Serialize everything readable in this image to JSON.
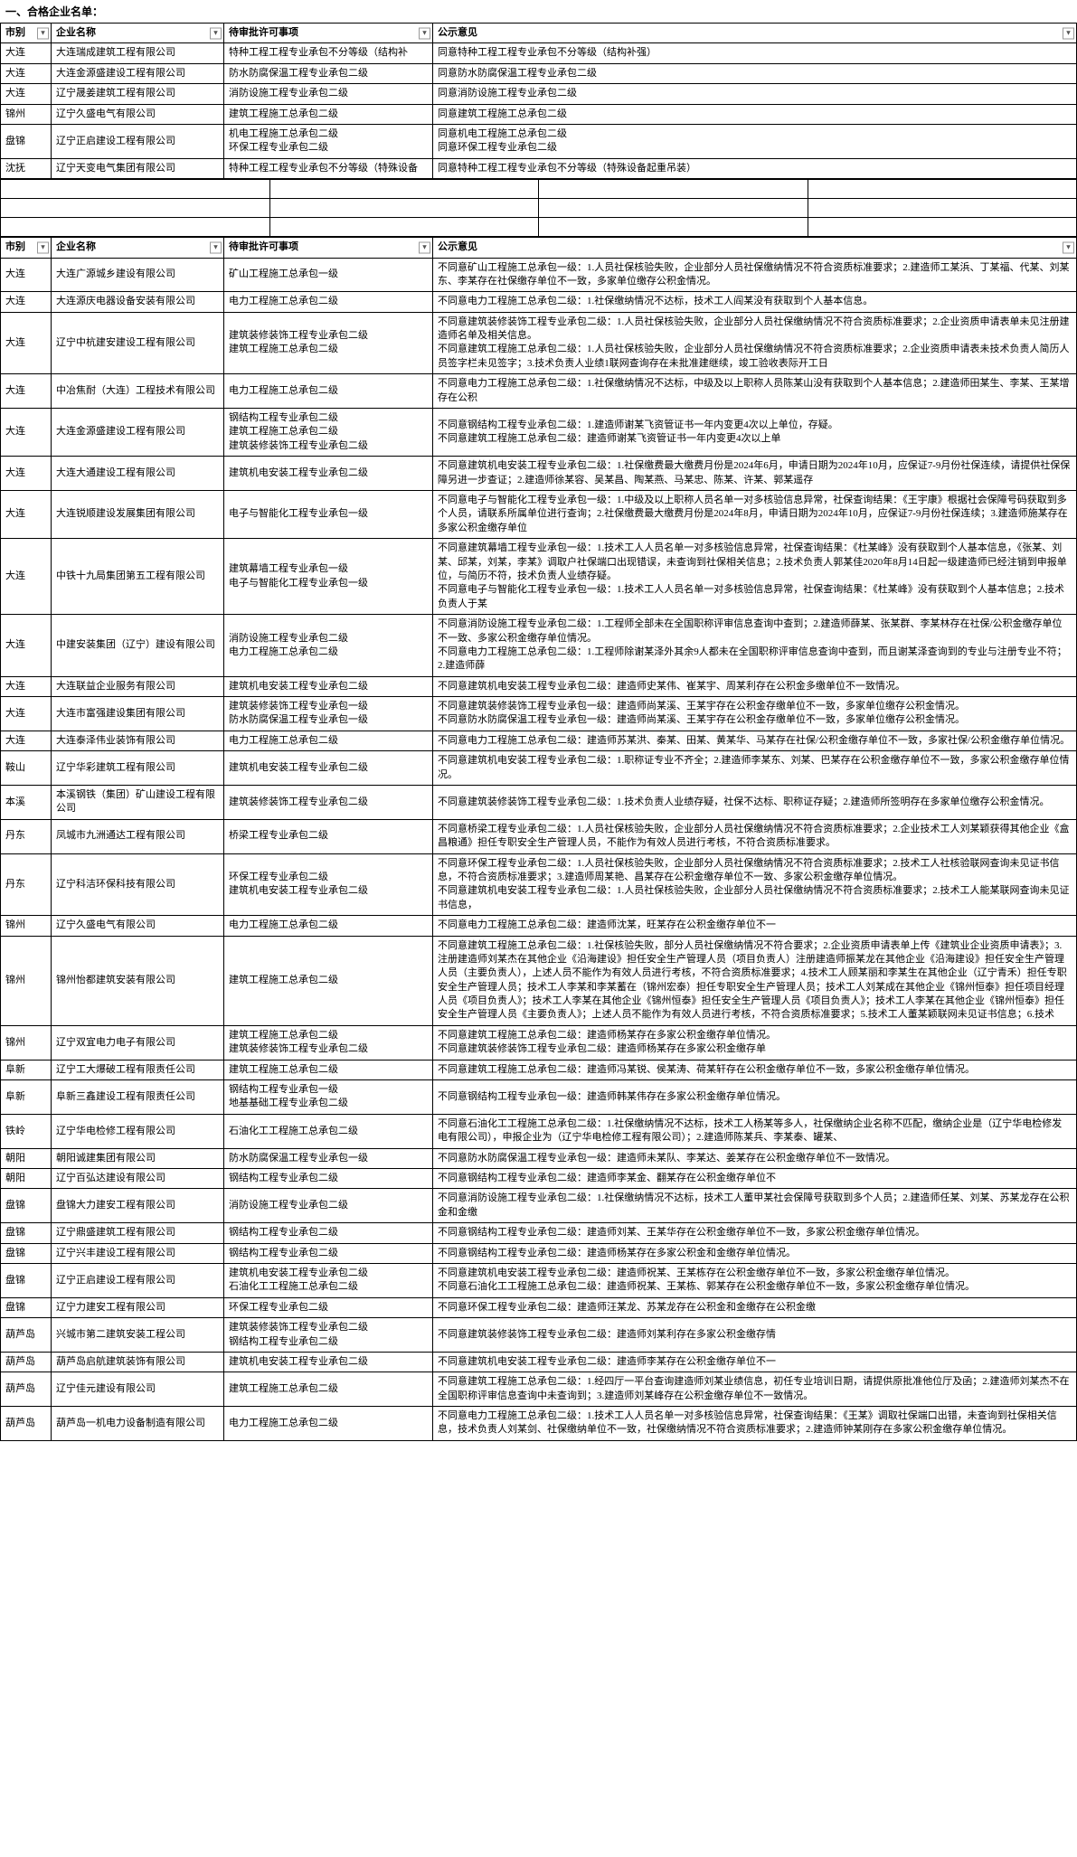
{
  "section1_title": "一、合格企业名单：",
  "headers": {
    "city": "市别",
    "company": "企业名称",
    "item": "待审批许可事项",
    "opinion": "公示意见"
  },
  "table1_rows": [
    {
      "city": "大连",
      "company": "大连瑞成建筑工程有限公司",
      "item": "特种工程工程专业承包不分等级（结构补",
      "opinion": "同意特种工程工程专业承包不分等级（结构补强）"
    },
    {
      "city": "大连",
      "company": "大连金源盛建设工程有限公司",
      "item": "防水防腐保温工程专业承包二级",
      "opinion": "同意防水防腐保温工程专业承包二级"
    },
    {
      "city": "大连",
      "company": "辽宁晟姜建筑工程有限公司",
      "item": "消防设施工程专业承包二级",
      "opinion": "同意消防设施工程专业承包二级"
    },
    {
      "city": "锦州",
      "company": "辽宁久盛电气有限公司",
      "item": "建筑工程施工总承包二级",
      "opinion": "同意建筑工程施工总承包二级"
    },
    {
      "city": "盘锦",
      "company": "辽宁正启建设工程有限公司",
      "item": "机电工程施工总承包二级\n环保工程专业承包二级",
      "opinion": "同意机电工程施工总承包二级\n同意环保工程专业承包二级"
    },
    {
      "city": "沈抚",
      "company": "辽宁天变电气集团有限公司",
      "item": "特种工程工程专业承包不分等级（特殊设备",
      "opinion": "同意特种工程工程专业承包不分等级（特殊设备起重吊装）"
    }
  ],
  "table2_rows": [
    {
      "city": "大连",
      "company": "大连广源城乡建设有限公司",
      "item": "矿山工程施工总承包一级",
      "opinion": "不同意矿山工程施工总承包一级：1.人员社保核验失败，企业部分人员社保缴纳情况不符合资质标准要求；2.建造师工某浜、丁某福、代某、刘某东、李某存在社保缴存单位不一致，多家单位缴存公积金情况。"
    },
    {
      "city": "大连",
      "company": "大连源庆电器设备安装有限公司",
      "item": "电力工程施工总承包二级",
      "opinion": "不同意电力工程施工总承包二级：1.社保缴纳情况不达标，技术工人阎某没有获取到个人基本信息。"
    },
    {
      "city": "大连",
      "company": "辽宁中杭建安建设工程有限公司",
      "item": "建筑装修装饰工程专业承包二级\n建筑工程施工总承包二级",
      "opinion": "不同意建筑装修装饰工程专业承包二级：1.人员社保核验失败，企业部分人员社保缴纳情况不符合资质标准要求；2.企业资质申请表单未见注册建造师名单及相关信息。\n不同意建筑工程施工总承包二级：1.人员社保核验失败，企业部分人员社保缴纳情况不符合资质标准要求；2.企业资质申请表未技术负责人简历人员签字栏未见签字；3.技术负责人业绩1联网查询存在未批准建继续，竣工验收表际开工日"
    },
    {
      "city": "大连",
      "company": "中冶焦耐（大连）工程技术有限公司",
      "item": "电力工程施工总承包二级",
      "opinion": "不同意电力工程施工总承包二级：1.社保缴纳情况不达标，中级及以上职称人员陈某山没有获取到个人基本信息；2.建造师田某生、李某、王某增存在公积"
    },
    {
      "city": "大连",
      "company": "大连金源盛建设工程有限公司",
      "item": "钢结构工程专业承包二级\n建筑工程施工总承包二级\n建筑装修装饰工程专业承包二级",
      "opinion": "不同意钢结构工程专业承包二级：1.建造师谢某飞资管证书一年内变更4次以上单位，存疑。\n不同意建筑工程施工总承包二级：建造师谢某飞资管证书一年内变更4次以上单"
    },
    {
      "city": "大连",
      "company": "大连大通建设工程有限公司",
      "item": "建筑机电安装工程专业承包二级",
      "opinion": "不同意建筑机电安装工程专业承包二级：1.社保缴费最大缴费月份是2024年6月，申请日期为2024年10月，应保证7-9月份社保连续，请提供社保保障另进一步查证；2.建造师徐某容、吴某昌、陶某燕、马某忠、陈某、许某、郭某遥存"
    },
    {
      "city": "大连",
      "company": "大连锐顺建设发展集团有限公司",
      "item": "电子与智能化工程专业承包一级",
      "opinion": "不同意电子与智能化工程专业承包一级：1.中级及以上职称人员名单一对多核验信息异常，社保查询结果：《王宇康》根据社会保障号码获取到多个人员，请联系所属单位进行查询；2.社保缴费最大缴费月份是2024年8月，申请日期为2024年10月，应保证7-9月份社保连续；3.建造师施某存在多家公积金缴存单位"
    },
    {
      "city": "大连",
      "company": "中铁十九局集团第五工程有限公司",
      "item": "建筑幕墙工程专业承包一级\n电子与智能化工程专业承包一级",
      "opinion": "不同意建筑幕墙工程专业承包一级：1.技术工人人员名单一对多核验信息异常，社保查询结果：《杜某峰》没有获取到个人基本信息，《张某、刘某、邱某，刘某，李某》调取户社保端口出现错误，未查询到社保相关信息；2.技术负责人郭某佳2020年8月14日起一级建造师已经注销到申报单位，与简历不符，技术负责人业绩存疑。\n不同意电子与智能化工程专业承包一级：1.技术工人人员名单一对多核验信息异常，社保查询结果：《杜某峰》没有获取到个人基本信息；2.技术负责人于某"
    },
    {
      "city": "大连",
      "company": "中建安装集团（辽宁）建设有限公司",
      "item": "消防设施工程专业承包二级\n电力工程施工总承包二级",
      "opinion": "不同意消防设施工程专业承包二级：1.工程师全部未在全国职称评审信息查询中查到；2.建造师薛某、张某群、李某林存在社保/公积金缴存单位不一致、多家公积金缴存单位情况。\n不同意电力工程施工总承包二级：1.工程师除谢某泽外其余9人都未在全国职称评审信息查询中查到，而且谢某泽查询到的专业与注册专业不符；2.建造师薛"
    },
    {
      "city": "大连",
      "company": "大连联益企业服务有限公司",
      "item": "建筑机电安装工程专业承包二级",
      "opinion": "不同意建筑机电安装工程专业承包二级：建造师史某伟、崔某宇、周某利存在公积金多缴单位不一致情况。"
    },
    {
      "city": "大连",
      "company": "大连市富强建设集团有限公司",
      "item": "建筑装修装饰工程专业承包一级\n防水防腐保温工程专业承包一级",
      "opinion": "不同意建筑装修装饰工程专业承包一级：建造师尚某溪、王某宇存在公积金存缴单位不一致，多家单位缴存公积金情况。\n不同意防水防腐保温工程专业承包一级：建造师尚某溪、王某宇存在公积金存缴单位不一致，多家单位缴存公积金情况。"
    },
    {
      "city": "大连",
      "company": "大连泰泽伟业装饰有限公司",
      "item": "电力工程施工总承包二级",
      "opinion": "不同意电力工程施工总承包二级：建造师苏某洪、秦某、田某、黄某华、马某存在社保/公积金缴存单位不一致，多家社保/公积金缴存单位情况。"
    },
    {
      "city": "鞍山",
      "company": "辽宁华彩建筑工程有限公司",
      "item": "建筑机电安装工程专业承包二级",
      "opinion": "不同意建筑机电安装工程专业承包二级：1.职称证专业不齐全；2.建造师李某东、刘某、巴某存在公积金缴存单位不一致，多家公积金缴存单位情况。"
    },
    {
      "city": "本溪",
      "company": "本溪钢铁（集团）矿山建设工程有限公司",
      "item": "建筑装修装饰工程专业承包二级",
      "opinion": "不同意建筑装修装饰工程专业承包二级：1.技术负责人业绩存疑，社保不达标、职称证存疑；2.建造师所签明存在多家单位缴存公积金情况。"
    },
    {
      "city": "丹东",
      "company": "凤城市九洲通达工程有限公司",
      "item": "桥梁工程专业承包二级",
      "opinion": "不同意桥梁工程专业承包二级：1.人员社保核验失败，企业部分人员社保缴纳情况不符合资质标准要求；2.企业技术工人刘某颖获得其他企业《盒昌粮通》担任专职安全生产管理人员，不能作为有效人员进行考核，不符合资质标准要求。"
    },
    {
      "city": "丹东",
      "company": "辽宁科洁环保科技有限公司",
      "item": "环保工程专业承包二级\n建筑机电安装工程专业承包二级",
      "opinion": "不同意环保工程专业承包二级：1.人员社保核验失败，企业部分人员社保缴纳情况不符合资质标准要求；2.技术工人社核验联网查询未见证书信息，不符合资质标准要求；3.建造师周某艳、昌某存在公积金缴存单位不一致、多家公积金缴存单位情况。\n不同意建筑机电安装工程专业承包二级：1.人员社保核验失败，企业部分人员社保缴纳情况不符合资质标准要求；2.技术工人能某联网查询未见证书信息，"
    },
    {
      "city": "锦州",
      "company": "辽宁久盛电气有限公司",
      "item": "电力工程施工总承包二级",
      "opinion": "不同意电力工程施工总承包二级：建造师沈某，旺某存在公积金缴存单位不一"
    },
    {
      "city": "锦州",
      "company": "锦州怡都建筑安装有限公司",
      "item": "建筑工程施工总承包二级",
      "opinion": "不同意建筑工程施工总承包二级：1.社保核验失败，部分人员社保缴纳情况不符合要求；2.企业资质申请表单上传《建筑业企业资质申请表》；3.注册建造师刘某杰在其他企业《沿海建设》担任安全生产管理人员（项目负责人）注册建造师振某龙在其他企业《沿海建设》担任安全生产管理人员（主要负责人），上述人员不能作为有效人员进行考核，不符合资质标准要求；4.技术工人顾某丽和李某生在其他企业（辽宁青禾）担任专职安全生产管理人员；技术工人李某和李某蓄在（锦州宏泰）担任专职安全生产管理人员；技术工人刘某成在其他企业《锦州恒泰》担任项目经理人员《项目负责人》；技术工人李某在其他企业《锦州恒泰》担任安全生产管理人员《项目负责人》；技术工人李某在其他企业《锦州恒泰》担任安全生产管理人员《主要负责人》；上述人员不能作为有效人员进行考核，不符合资质标准要求；5.技术工人董某颖联网未见证书信息；6.技术"
    },
    {
      "city": "锦州",
      "company": "辽宁双宜电力电子有限公司",
      "item": "建筑工程施工总承包二级\n建筑装修装饰工程专业承包二级",
      "opinion": "不同意建筑工程施工总承包二级：建造师杨某存在多家公积金缴存单位情况。\n不同意建筑装修装饰工程专业承包二级：建造师杨某存在多家公积金缴存单"
    },
    {
      "city": "阜新",
      "company": "辽宁工大爆破工程有限责任公司",
      "item": "建筑工程施工总承包二级",
      "opinion": "不同意建筑工程施工总承包二级：建造师冯某锐、侯某涛、荷某轩存在公积金缴存单位不一致，多家公积金缴存单位情况。"
    },
    {
      "city": "阜新",
      "company": "阜新三鑫建设工程有限责任公司",
      "item": "钢结构工程专业承包一级\n地基基础工程专业承包二级",
      "opinion": "不同意钢结构工程专业承包一级：建造师韩某伟存在多家公积金缴存单位情况。"
    },
    {
      "city": "铁岭",
      "company": "辽宁华电检修工程有限公司",
      "item": "石油化工工程施工总承包二级",
      "opinion": "不同意石油化工工程施工总承包二级：1.社保缴纳情况不达标，技术工人杨某等多人，社保缴纳企业名称不匹配，缴纳企业是（辽宁华电检修发电有限公司），申报企业为（辽宁华电检修工程有限公司）；2.建造师陈某兵、李某泰、罐某、"
    },
    {
      "city": "朝阳",
      "company": "朝阳诚建集团有限公司",
      "item": "防水防腐保温工程专业承包一级",
      "opinion": "不同意防水防腐保温工程专业承包一级：建造师未某队、李某达、姜某存在公积金缴存单位不一致情况。"
    },
    {
      "city": "朝阳",
      "company": "辽宁百弘达建设有限公司",
      "item": "钢结构工程专业承包二级",
      "opinion": "不同意钢结构工程专业承包二级：建造师李某金、翻某存在公积金缴存单位不"
    },
    {
      "city": "盘锦",
      "company": "盘锦大力建安工程有限公司",
      "item": "消防设施工程专业承包二级",
      "opinion": "不同意消防设施工程专业承包二级：1.社保缴纳情况不达标，技术工人董甲某社会保障号获取到多个人员；2.建造师任某、刘某、苏某龙存在公积金和金缴"
    },
    {
      "city": "盘锦",
      "company": "辽宁鼎盛建筑工程有限公司",
      "item": "钢结构工程专业承包二级",
      "opinion": "不同意钢结构工程专业承包二级：建造师刘某、王某华存在公积金缴存单位不一致，多家公积金缴存单位情况。"
    },
    {
      "city": "盘锦",
      "company": "辽宁兴丰建设工程有限公司",
      "item": "钢结构工程专业承包二级",
      "opinion": "不同意钢结构工程专业承包二级：建造师杨某存在多家公积金和金缴存单位情况。"
    },
    {
      "city": "盘锦",
      "company": "辽宁正启建设工程有限公司",
      "item": "建筑机电安装工程专业承包二级\n石油化工工程施工总承包二级",
      "opinion": "不同意建筑机电安装工程专业承包二级：建造师祝某、王某栋存在公积金缴存单位不一致，多家公积金缴存单位情况。\n不同意石油化工工程施工总承包二级：建造师祝某、王某栋、郭某存在公积金缴存单位不一致，多家公积金缴存单位情况。"
    },
    {
      "city": "盘锦",
      "company": "辽宁力建安工程有限公司",
      "item": "环保工程专业承包二级",
      "opinion": "不同意环保工程专业承包二级：建造师汪某龙、苏某龙存在公积金和金缴存在公积金缴"
    },
    {
      "city": "葫芦岛",
      "company": "兴城市第二建筑安装工程公司",
      "item": "建筑装修装饰工程专业承包二级\n钢结构工程专业承包二级",
      "opinion": "不同意建筑装修装饰工程专业承包二级：建造师刘某利存在多家公积金缴存情"
    },
    {
      "city": "葫芦岛",
      "company": "葫芦岛启航建筑装饰有限公司",
      "item": "建筑机电安装工程专业承包二级",
      "opinion": "不同意建筑机电安装工程专业承包二级：建造师李某存在公积金缴存单位不一"
    },
    {
      "city": "葫芦岛",
      "company": "辽宁佳元建设有限公司",
      "item": "建筑工程施工总承包二级",
      "opinion": "不同意建筑工程施工总承包二级：1.经四厅一平台查询建造师刘某业绩信息，初任专业培训日期，请提供原批准他位厅及函；2.建造师刘某杰不在全国职称评审信息查询中未查询到；3.建造师刘某峰存在公积金缴存单位不一致情况。"
    },
    {
      "city": "葫芦岛",
      "company": "葫芦岛一机电力设备制造有限公司",
      "item": "电力工程施工总承包二级",
      "opinion": "不同意电力工程施工总承包二级：1.技术工人人员名单一对多核验信息异常，社保查询结果：《王某》调取社保端口出错，未查询到社保相关信息，技术负责人刘某剑、社保缴纳单位不一致，社保缴纳情况不符合资质标准要求；2.建造师钟某刚存在多家公积金缴存单位情况。"
    }
  ]
}
